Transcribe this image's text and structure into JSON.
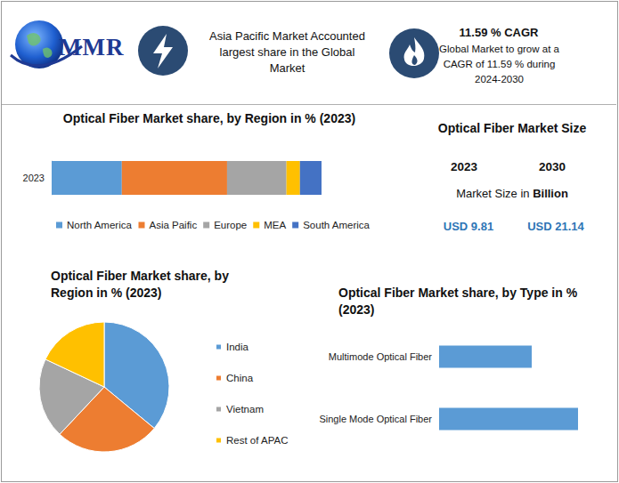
{
  "header": {
    "brand": "MMR",
    "headline": "Asia Pacific Market Accounted largest share in the Global Market",
    "cagr_title": "11.59 % CAGR",
    "cagr_text": "Global Market to grow at a CAGR of 11.59 % during 2024-2030"
  },
  "market_size": {
    "title": "Optical Fiber Market Size",
    "years": [
      "2023",
      "2030"
    ],
    "subtitle": "Market Size in Billion",
    "values": [
      "USD 9.81",
      "USD 21.14"
    ]
  },
  "chart_data": [
    {
      "type": "bar",
      "title": "Optical Fiber Market share, by Region in % (2023)",
      "orientation": "horizontal",
      "stacked": true,
      "legend": "bottom",
      "tick_labels": "y",
      "grid": false,
      "categories": [
        "2023"
      ],
      "xlim": [
        0,
        100
      ],
      "series": [
        {
          "name": "North America",
          "color": "#5b9bd5",
          "values": [
            26
          ]
        },
        {
          "name": "Asia Paific",
          "color": "#ed7d31",
          "values": [
            39
          ]
        },
        {
          "name": "Europe",
          "color": "#a5a5a5",
          "values": [
            22
          ]
        },
        {
          "name": "MEA",
          "color": "#ffc000",
          "values": [
            5
          ]
        },
        {
          "name": "South America",
          "color": "#4472c4",
          "values": [
            8
          ]
        }
      ]
    },
    {
      "type": "pie",
      "title": "Optical Fiber Market share, by Region in % (2023)",
      "legend": "right",
      "categories": [
        "India",
        "China",
        "Vietnam",
        "Rest of APAC"
      ],
      "values": [
        36,
        26,
        20,
        18
      ],
      "colors": [
        "#5b9bd5",
        "#ed7d31",
        "#a5a5a5",
        "#ffc000"
      ]
    },
    {
      "type": "bar",
      "title": "Optical Fiber Market share, by Type in % (2023)",
      "orientation": "horizontal",
      "tick_labels": "y",
      "grid": false,
      "categories": [
        "Multimode Optical Fiber",
        "Single Mode Optical Fiber"
      ],
      "values": [
        40,
        60
      ],
      "color": "#5b9bd5",
      "xlim": [
        0,
        60
      ]
    }
  ]
}
